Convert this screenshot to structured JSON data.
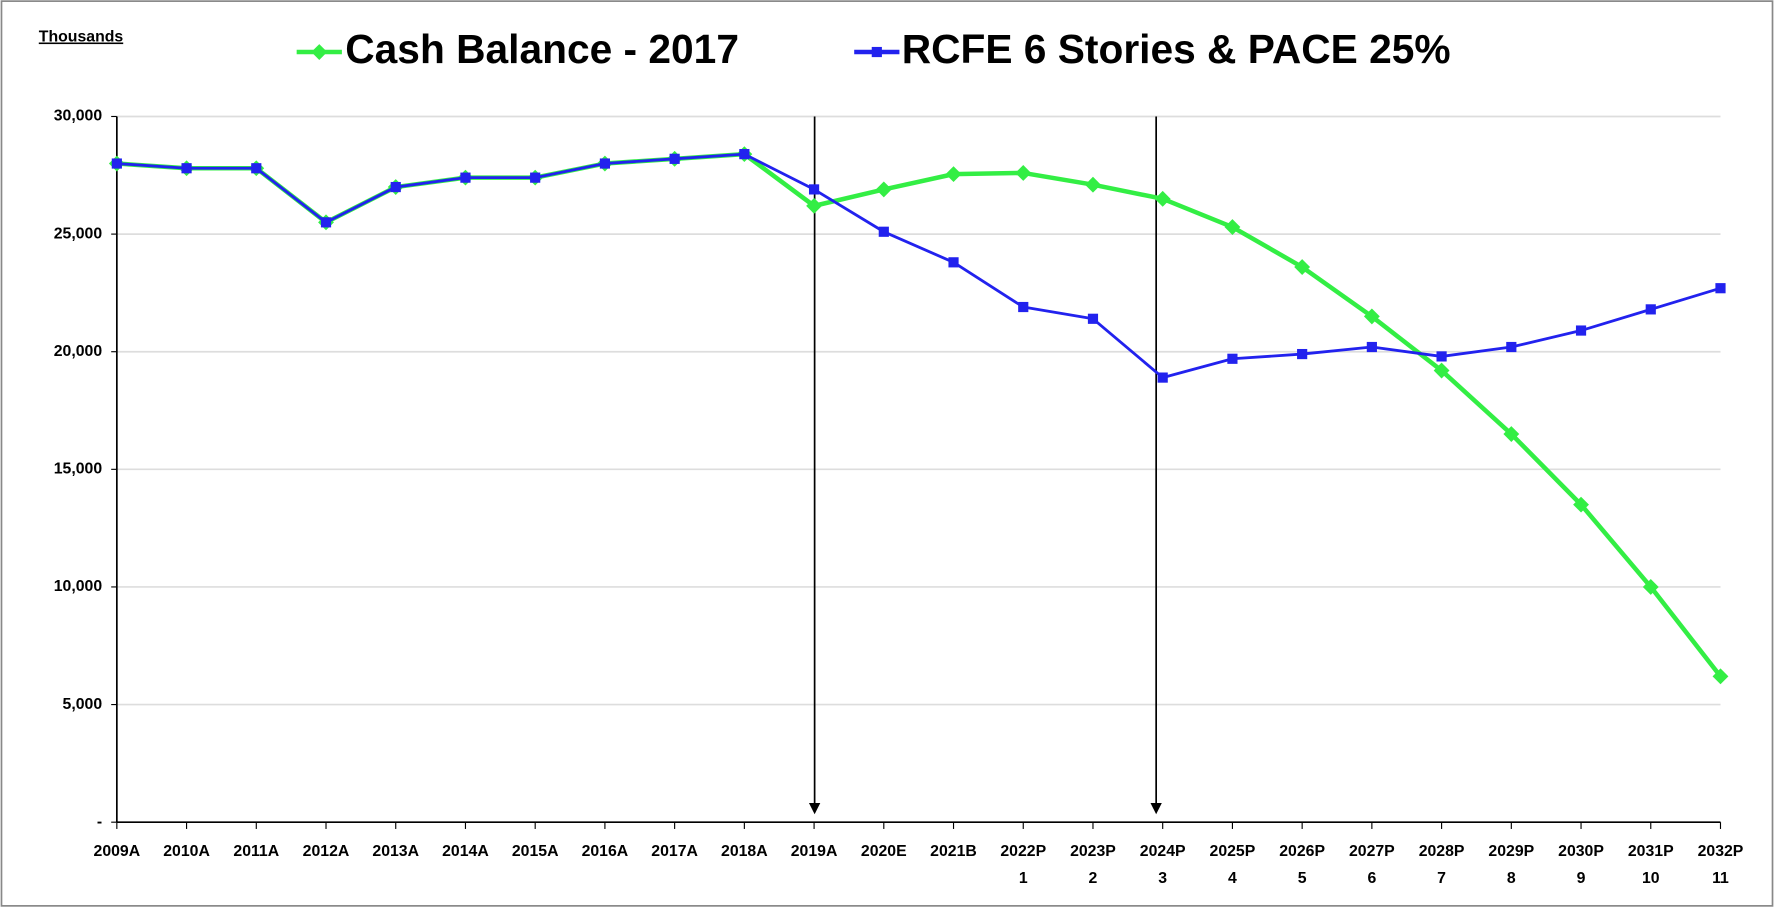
{
  "chart_data": {
    "type": "line",
    "y_label": "Thousands",
    "categories": [
      "2009A",
      "2010A",
      "2011A",
      "2012A",
      "2013A",
      "2014A",
      "2015A",
      "2016A",
      "2017A",
      "2018A",
      "2019A",
      "2020E",
      "2021B",
      "2022P",
      "2023P",
      "2024P",
      "2025P",
      "2026P",
      "2027P",
      "2028P",
      "2029P",
      "2030P",
      "2031P",
      "2032P"
    ],
    "sub_labels": [
      null,
      null,
      null,
      null,
      null,
      null,
      null,
      null,
      null,
      null,
      null,
      null,
      null,
      "1",
      "2",
      "3",
      "4",
      "5",
      "6",
      "7",
      "8",
      "9",
      "10",
      "11"
    ],
    "series": [
      {
        "name": "Cash Balance - 2017",
        "color": "#33ee44",
        "marker": "diamond",
        "values": [
          28000,
          27800,
          27800,
          25500,
          27000,
          27400,
          27400,
          28000,
          28200,
          28400,
          26200,
          26900,
          27550,
          27600,
          27100,
          26500,
          25300,
          23600,
          21500,
          19200,
          16500,
          13500,
          10000,
          6200
        ]
      },
      {
        "name": "RCFE 6 Stories & PACE 25%",
        "color": "#2222ee",
        "marker": "square",
        "values": [
          28000,
          27800,
          27800,
          25500,
          27000,
          27400,
          27400,
          28000,
          28200,
          28400,
          26900,
          25100,
          23800,
          21900,
          21400,
          18900,
          19700,
          19900,
          20200,
          19800,
          20200,
          20900,
          21800,
          22700
        ]
      }
    ],
    "ylim": [
      0,
      30000
    ],
    "yticks": [
      {
        "value": 0,
        "label": "-"
      },
      {
        "value": 5000,
        "label": "5,000"
      },
      {
        "value": 10000,
        "label": "10,000"
      },
      {
        "value": 15000,
        "label": "15,000"
      },
      {
        "value": 20000,
        "label": "20,000"
      },
      {
        "value": 25000,
        "label": "25,000"
      },
      {
        "value": 30000,
        "label": "30,000"
      }
    ],
    "grid": true,
    "legend": "top"
  }
}
